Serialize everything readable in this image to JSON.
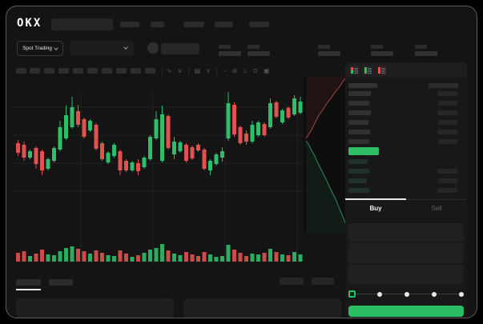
{
  "brand": {
    "logo": "OKX"
  },
  "header": {
    "nav_placeholder_count": 5,
    "market_selector_label": "Spot Trading",
    "ticker_stat_groups": 5
  },
  "icons": {
    "chart_toolbar": [
      {
        "name": "wave-icon",
        "glyph": "∿"
      },
      {
        "name": "chevron-down-icon",
        "glyph": "∨"
      },
      {
        "name": "divider",
        "glyph": "|"
      },
      {
        "name": "indicator-icon",
        "glyph": "▤"
      },
      {
        "name": "chevron-down-icon",
        "glyph": "∨"
      },
      {
        "name": "divider",
        "glyph": "|"
      },
      {
        "name": "line-tool-icon",
        "glyph": "~"
      },
      {
        "name": "eraser-icon",
        "glyph": "⊘"
      },
      {
        "name": "camera-icon",
        "glyph": "⌂"
      },
      {
        "name": "settings-icon",
        "glyph": "⊙"
      },
      {
        "name": "fullscreen-icon",
        "glyph": "▣"
      }
    ],
    "orderbook_layouts": [
      {
        "name": "orderbook-combined-icon",
        "rows": [
          "red",
          "red",
          "green",
          "green"
        ]
      },
      {
        "name": "orderbook-bids-icon",
        "rows": [
          "green",
          "green",
          "green",
          "green"
        ]
      },
      {
        "name": "orderbook-asks-icon",
        "rows": [
          "red",
          "red",
          "red",
          "red"
        ]
      }
    ]
  },
  "colors": {
    "up": "#2ebd6b",
    "down": "#e0514f",
    "accent_green": "#2abd64",
    "price_bar_green": "#2fbe66",
    "grid": "#1f1f1f",
    "depth_ask_line": "#a14a4a",
    "depth_bid_line": "#2d8a5c"
  },
  "orderbook": {
    "ask_rows": [
      {
        "price_w": 28,
        "amount_w": 25
      },
      {
        "price_w": 26,
        "amount_w": 24
      },
      {
        "price_w": 28,
        "amount_w": 25
      },
      {
        "price_w": 25,
        "amount_w": 24
      },
      {
        "price_w": 27,
        "amount_w": 25
      },
      {
        "price_w": 26,
        "amount_w": 24
      }
    ],
    "last_price_highlight": "green",
    "bid_rows": [
      {
        "price_w": 24,
        "amount_w": 0
      },
      {
        "price_w": 26,
        "amount_w": 25
      },
      {
        "price_w": 23,
        "amount_w": 24
      },
      {
        "price_w": 26,
        "amount_w": 25
      }
    ]
  },
  "side_tabs": {
    "buy": "Buy",
    "sell": "Sell"
  },
  "trade_form": {
    "field_count": 3,
    "slider": {
      "value_percent": 0,
      "stops": [
        0,
        25,
        50,
        75,
        100
      ]
    }
  },
  "chart_data": {
    "type": "candlestick_with_volume_and_depth",
    "title": "",
    "xlabel": "time (axis labels not shown)",
    "ylabel": "price (axis labels not shown)",
    "grid": true,
    "price_unit_note": "relative units read from pixels; no numeric labels visible in screenshot",
    "candles_ohlc": [
      [
        67,
        71,
        51,
        55
      ],
      [
        65,
        69,
        45,
        49
      ],
      [
        49,
        59,
        47,
        57
      ],
      [
        61,
        63,
        35,
        41
      ],
      [
        57,
        59,
        27,
        33
      ],
      [
        35,
        49,
        33,
        47
      ],
      [
        45,
        63,
        43,
        61
      ],
      [
        59,
        95,
        57,
        87
      ],
      [
        73,
        114,
        71,
        102
      ],
      [
        87,
        125,
        85,
        112
      ],
      [
        107,
        115,
        87,
        90
      ],
      [
        97,
        99,
        73,
        75
      ],
      [
        83,
        97,
        81,
        95
      ],
      [
        90,
        92,
        58,
        60
      ],
      [
        67,
        69,
        45,
        47
      ],
      [
        43,
        57,
        41,
        55
      ],
      [
        51,
        67,
        49,
        65
      ],
      [
        57,
        59,
        27,
        33
      ],
      [
        45,
        47,
        31,
        33
      ],
      [
        33,
        45,
        31,
        43
      ],
      [
        42,
        47,
        27,
        32
      ],
      [
        37,
        51,
        35,
        49
      ],
      [
        47,
        77,
        45,
        75
      ],
      [
        73,
        107,
        71,
        97
      ],
      [
        45,
        114,
        43,
        103
      ],
      [
        101,
        103,
        59,
        61
      ],
      [
        53,
        75,
        47,
        69
      ],
      [
        57,
        70,
        55,
        68
      ],
      [
        65,
        67,
        43,
        45
      ],
      [
        62,
        64,
        46,
        48
      ],
      [
        65,
        67,
        56,
        58
      ],
      [
        59,
        61,
        33,
        35
      ],
      [
        33,
        47,
        27,
        45
      ],
      [
        41,
        55,
        39,
        53
      ],
      [
        49,
        62,
        44,
        57
      ],
      [
        73,
        131,
        70,
        117
      ],
      [
        115,
        118,
        75,
        78
      ],
      [
        87,
        89,
        65,
        67
      ],
      [
        79,
        83,
        65,
        69
      ],
      [
        69,
        95,
        67,
        90
      ],
      [
        77,
        95,
        75,
        93
      ],
      [
        91,
        93,
        75,
        77
      ],
      [
        87,
        123,
        85,
        117
      ],
      [
        118,
        120,
        98,
        100
      ],
      [
        93,
        110,
        91,
        108
      ],
      [
        111,
        113,
        97,
        99
      ],
      [
        103,
        127,
        101,
        123
      ],
      [
        105,
        125,
        103,
        119
      ]
    ],
    "volume": [
      11,
      13,
      7,
      10,
      15,
      9,
      8,
      13,
      17,
      19,
      16,
      13,
      10,
      14,
      11,
      8,
      7,
      14,
      10,
      6,
      8,
      11,
      15,
      17,
      22,
      14,
      10,
      8,
      12,
      9,
      7,
      12,
      9,
      6,
      7,
      21,
      15,
      11,
      7,
      10,
      9,
      11,
      16,
      12,
      9,
      8,
      12,
      9
    ],
    "depth": {
      "asks": [
        [
          3,
          77
        ],
        [
          7,
          71
        ],
        [
          10,
          66
        ],
        [
          13,
          60
        ],
        [
          16,
          54
        ],
        [
          19,
          48
        ],
        [
          23,
          43
        ],
        [
          26,
          38
        ],
        [
          30,
          32
        ],
        [
          34,
          27
        ],
        [
          38,
          21
        ],
        [
          42,
          16
        ],
        [
          46,
          11
        ],
        [
          49,
          6
        ],
        [
          52,
          2
        ]
      ],
      "bids": [
        [
          3,
          80
        ],
        [
          7,
          86
        ],
        [
          10,
          92
        ],
        [
          14,
          99
        ],
        [
          17,
          106
        ],
        [
          21,
          114
        ],
        [
          25,
          122
        ],
        [
          29,
          130
        ],
        [
          33,
          139
        ],
        [
          37,
          147
        ],
        [
          41,
          155
        ],
        [
          44,
          163
        ],
        [
          47,
          170
        ],
        [
          50,
          177
        ],
        [
          52,
          183
        ]
      ]
    }
  }
}
